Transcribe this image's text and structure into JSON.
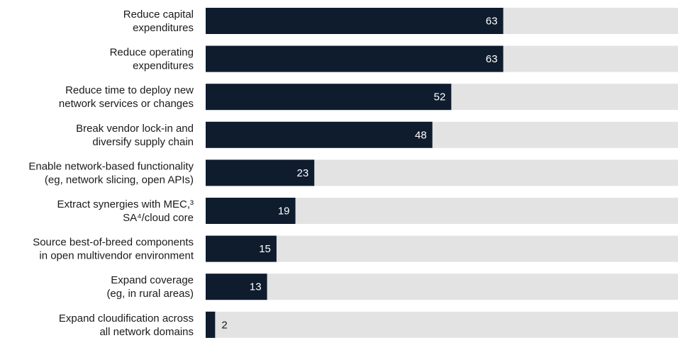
{
  "chart_data": {
    "type": "bar",
    "orientation": "horizontal",
    "xlim": [
      0,
      100
    ],
    "categories": [
      [
        "Reduce capital",
        "expenditures"
      ],
      [
        "Reduce operating",
        "expenditures"
      ],
      [
        "Reduce time to deploy new",
        "network services or changes"
      ],
      [
        "Break vendor lock-in and",
        "diversify supply chain"
      ],
      [
        "Enable network-based functionality",
        "(eg, network slicing, open APIs)"
      ],
      [
        "Extract synergies with MEC,³",
        "SA⁴/cloud core"
      ],
      [
        "Source best-of-breed components",
        "in open multivendor environment"
      ],
      [
        "Expand coverage",
        "(eg, in rural areas)"
      ],
      [
        "Expand cloudification across",
        "all network domains"
      ]
    ],
    "values": [
      63,
      63,
      52,
      48,
      23,
      19,
      15,
      13,
      2
    ],
    "bar_color": "#0e1c2e",
    "track_color": "#e3e3e3"
  }
}
